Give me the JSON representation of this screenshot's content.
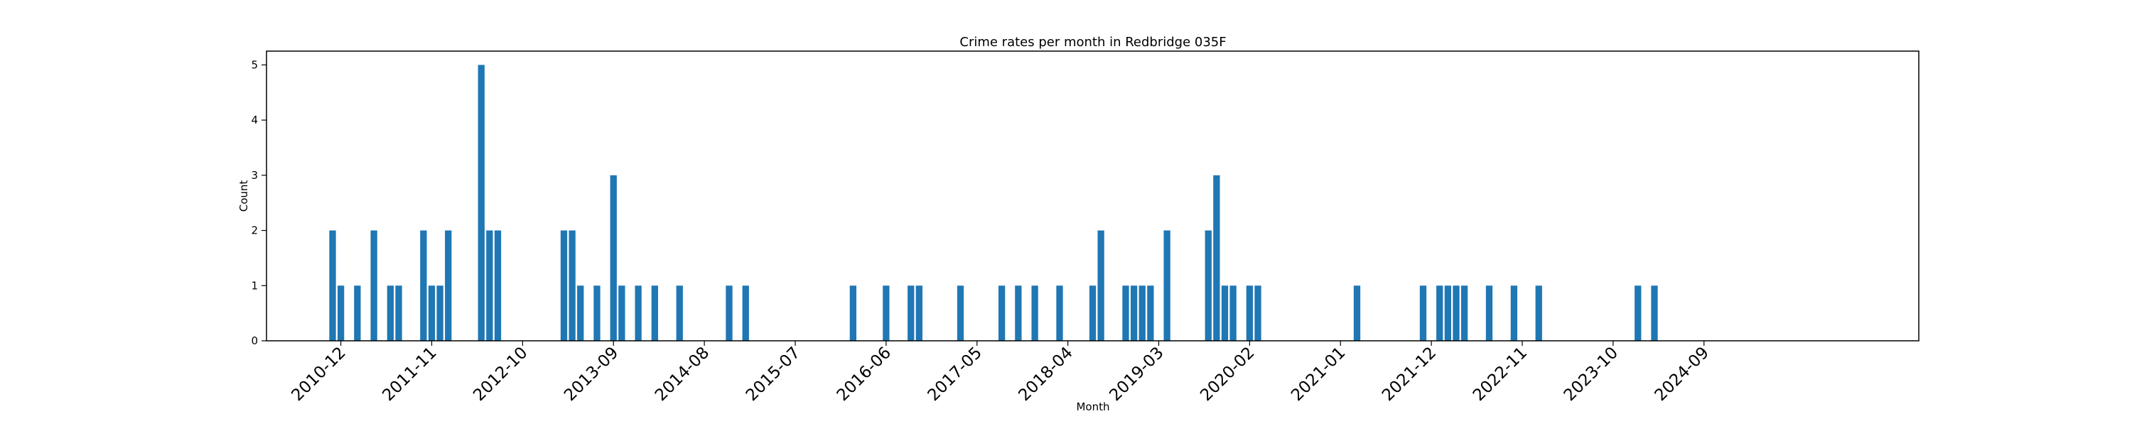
{
  "chart_data": {
    "type": "bar",
    "title": "Crime rates per month in Redbridge 035F",
    "xlabel": "Month",
    "ylabel": "Count",
    "ylim": [
      0,
      5.25
    ],
    "yticks": [
      0,
      1,
      2,
      3,
      4,
      5
    ],
    "xlim": [
      "2010-03",
      "2026-11"
    ],
    "xticks": [
      "2010-12",
      "2011-11",
      "2012-10",
      "2013-09",
      "2014-08",
      "2015-07",
      "2016-06",
      "2017-05",
      "2018-04",
      "2019-03",
      "2020-02",
      "2021-01",
      "2021-12",
      "2022-11",
      "2023-10",
      "2024-09"
    ],
    "bar_color": "#1f77b4",
    "grid": false,
    "x": [
      "2010-11",
      "2010-12",
      "2011-02",
      "2011-04",
      "2011-06",
      "2011-07",
      "2011-10",
      "2011-11",
      "2011-12",
      "2012-01",
      "2012-05",
      "2012-06",
      "2012-07",
      "2013-03",
      "2013-04",
      "2013-05",
      "2013-07",
      "2013-09",
      "2013-10",
      "2013-12",
      "2014-02",
      "2014-05",
      "2014-11",
      "2015-01",
      "2016-02",
      "2016-06",
      "2016-09",
      "2016-10",
      "2017-03",
      "2017-08",
      "2017-10",
      "2017-12",
      "2018-03",
      "2018-07",
      "2018-08",
      "2018-11",
      "2018-12",
      "2019-01",
      "2019-02",
      "2019-04",
      "2019-09",
      "2019-10",
      "2019-11",
      "2019-12",
      "2020-02",
      "2020-03",
      "2021-03",
      "2021-11",
      "2022-01",
      "2022-02",
      "2022-03",
      "2022-04",
      "2022-07",
      "2022-10",
      "2023-01",
      "2024-01",
      "2024-03"
    ],
    "values": [
      2,
      1,
      1,
      2,
      1,
      1,
      2,
      1,
      1,
      2,
      5,
      2,
      2,
      2,
      2,
      1,
      1,
      3,
      1,
      1,
      1,
      1,
      1,
      1,
      1,
      1,
      1,
      1,
      1,
      1,
      1,
      1,
      1,
      1,
      2,
      1,
      1,
      1,
      1,
      2,
      2,
      3,
      1,
      1,
      1,
      1,
      1,
      1,
      1,
      1,
      1,
      1,
      1,
      1,
      1,
      1,
      1
    ]
  }
}
